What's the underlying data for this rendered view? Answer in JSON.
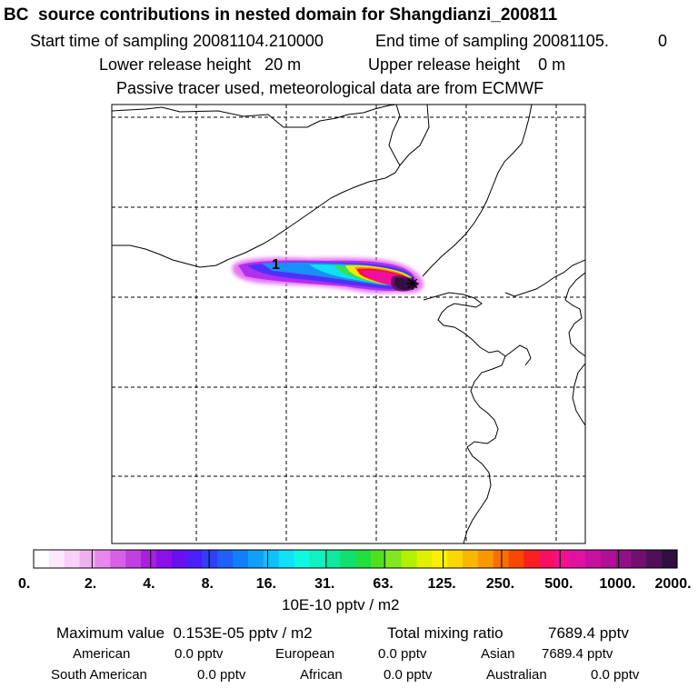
{
  "title": "BC  source contributions in nested domain for Shangdianzi_200811",
  "sampling": {
    "start_label": "Start time of sampling 20081104.210000",
    "end_label": "End time of sampling 20081105.",
    "end_value": "0"
  },
  "release": {
    "lower": "Lower release height   20 m",
    "upper": "Upper release height    0 m"
  },
  "tracer_note": "Passive tracer used, meteorological data are from ECMWF",
  "map": {
    "plume_marker": "1",
    "receptor_symbol": "*"
  },
  "colorbar": {
    "tick_labels": [
      "0.",
      "2.",
      "4.",
      "8.",
      "16.",
      "31.",
      "63.",
      "125.",
      "250.",
      "500.",
      "1000.",
      "2000."
    ],
    "unit": "10E-10 pptv / m2",
    "colors": [
      "#ffffff",
      "#fde8fd",
      "#f8d0f8",
      "#f0b0f0",
      "#e888ee",
      "#d860e8",
      "#c040e0",
      "#a820e0",
      "#8c10e8",
      "#6a10f0",
      "#4a20f8",
      "#3040f8",
      "#2060f8",
      "#1080f8",
      "#10a0f8",
      "#10c0f8",
      "#10e0f8",
      "#10f8e0",
      "#10f0c0",
      "#10e8a0",
      "#10e070",
      "#20e040",
      "#50e020",
      "#80e820",
      "#b0f000",
      "#e0f000",
      "#f8f000",
      "#f8d800",
      "#f8b800",
      "#f89800",
      "#f87000",
      "#f84800",
      "#f82020",
      "#f81060",
      "#f01090",
      "#e010a0",
      "#c810a0",
      "#b01098",
      "#901088",
      "#701070",
      "#501058",
      "#301040"
    ]
  },
  "summary": {
    "max_label": "Maximum value  0.153E-05 pptv / m2",
    "total_label": "Total mixing ratio",
    "total_value": "7689.4 pptv"
  },
  "regions": [
    {
      "name": "American",
      "value": "0.0 pptv"
    },
    {
      "name": "European",
      "value": "0.0 pptv"
    },
    {
      "name": "Asian",
      "value": "7689.4 pptv"
    },
    {
      "name": "South American",
      "value": "0.0 pptv"
    },
    {
      "name": "African",
      "value": "0.0 pptv"
    },
    {
      "name": "Australian",
      "value": "0.0 pptv"
    }
  ]
}
